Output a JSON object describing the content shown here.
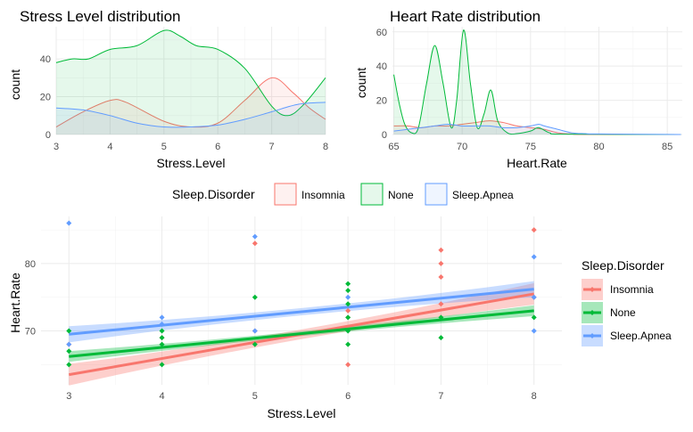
{
  "chart_data": [
    {
      "type": "area",
      "title": "Stress Level distribution",
      "xlabel": "Stress.Level",
      "ylabel": "count",
      "xlim": [
        3,
        8
      ],
      "ylim": [
        0,
        57
      ],
      "x_ticks": [
        3,
        4,
        5,
        6,
        7,
        8
      ],
      "y_ticks": [
        0,
        20,
        40
      ],
      "grid": true,
      "series": [
        {
          "name": "Insomnia",
          "color": "#F8766D",
          "points": [
            [
              3,
              4
            ],
            [
              3.5,
              12
            ],
            [
              4,
              18
            ],
            [
              4.3,
              17
            ],
            [
              5,
              7
            ],
            [
              5.5,
              4
            ],
            [
              6,
              6
            ],
            [
              6.5,
              18
            ],
            [
              7,
              30
            ],
            [
              7.4,
              22
            ],
            [
              7.7,
              14
            ],
            [
              8,
              8
            ]
          ]
        },
        {
          "name": "None",
          "color": "#00BA38",
          "points": [
            [
              3,
              38
            ],
            [
              3.3,
              40
            ],
            [
              3.6,
              40
            ],
            [
              4,
              45
            ],
            [
              4.5,
              47
            ],
            [
              5,
              55
            ],
            [
              5.3,
              52
            ],
            [
              5.6,
              47
            ],
            [
              6,
              45
            ],
            [
              6.5,
              35
            ],
            [
              7,
              15
            ],
            [
              7.3,
              10
            ],
            [
              7.6,
              16
            ],
            [
              8,
              30
            ]
          ]
        },
        {
          "name": "Sleep.Apnea",
          "color": "#619CFF",
          "points": [
            [
              3,
              14
            ],
            [
              3.5,
              13
            ],
            [
              4,
              10
            ],
            [
              4.5,
              6
            ],
            [
              5,
              4
            ],
            [
              5.5,
              4
            ],
            [
              6,
              5
            ],
            [
              6.5,
              8
            ],
            [
              7,
              12
            ],
            [
              7.5,
              16
            ],
            [
              8,
              17
            ]
          ]
        }
      ]
    },
    {
      "type": "area",
      "title": "Heart Rate distribution",
      "xlabel": "Heart.Rate",
      "ylabel": "count",
      "xlim": [
        64.9,
        86.1
      ],
      "ylim": [
        0,
        63
      ],
      "x_ticks": [
        65,
        70,
        75,
        80,
        85
      ],
      "y_ticks": [
        0,
        20,
        40,
        60
      ],
      "grid": true,
      "series": [
        {
          "name": "Insomnia",
          "color": "#F8766D",
          "points": [
            [
              65,
              5
            ],
            [
              66,
              5
            ],
            [
              67,
              4
            ],
            [
              68,
              5
            ],
            [
              69,
              5
            ],
            [
              70,
              6
            ],
            [
              71,
              7
            ],
            [
              72,
              8
            ],
            [
              73,
              7
            ],
            [
              74,
              5
            ],
            [
              75,
              4
            ],
            [
              76,
              3
            ],
            [
              77,
              1
            ],
            [
              78,
              0.3
            ],
            [
              79,
              0
            ],
            [
              86,
              0
            ]
          ]
        },
        {
          "name": "None",
          "color": "#00BA38",
          "points": [
            [
              65,
              35
            ],
            [
              65.4,
              18
            ],
            [
              65.8,
              6
            ],
            [
              66.3,
              1
            ],
            [
              66.8,
              4
            ],
            [
              67.4,
              30
            ],
            [
              68,
              52
            ],
            [
              68.6,
              30
            ],
            [
              69.2,
              4
            ],
            [
              69.6,
              20
            ],
            [
              70.1,
              61
            ],
            [
              70.6,
              30
            ],
            [
              71.1,
              4
            ],
            [
              71.6,
              12
            ],
            [
              72.1,
              26
            ],
            [
              72.6,
              8
            ],
            [
              73.3,
              1
            ],
            [
              74,
              0.5
            ],
            [
              75,
              2
            ],
            [
              75.6,
              4
            ],
            [
              76.4,
              1
            ],
            [
              77.5,
              0.2
            ],
            [
              86,
              0
            ]
          ]
        },
        {
          "name": "Sleep.Apnea",
          "color": "#619CFF",
          "points": [
            [
              65,
              2
            ],
            [
              66,
              3
            ],
            [
              67,
              4
            ],
            [
              68,
              5
            ],
            [
              69,
              6
            ],
            [
              70,
              5
            ],
            [
              71,
              5
            ],
            [
              72,
              5
            ],
            [
              73,
              4
            ],
            [
              74,
              4
            ],
            [
              75,
              5
            ],
            [
              75.6,
              6
            ],
            [
              76,
              5
            ],
            [
              77,
              3
            ],
            [
              78,
              1
            ],
            [
              79,
              0.5
            ],
            [
              80,
              0.3
            ],
            [
              86,
              0
            ]
          ]
        }
      ]
    },
    {
      "type": "scatter",
      "title": "",
      "xlabel": "Stress.Level",
      "ylabel": "Heart.Rate",
      "xlim": [
        2.7,
        8.3
      ],
      "ylim": [
        62,
        87
      ],
      "x_ticks": [
        3,
        4,
        5,
        6,
        7,
        8
      ],
      "y_ticks": [
        70,
        80
      ],
      "grid": true,
      "legend_position": "right",
      "series": [
        {
          "name": "Insomnia",
          "color": "#F8766D",
          "points": [
            [
              3,
              68
            ],
            [
              4,
              69
            ],
            [
              5,
              83
            ],
            [
              5,
              70
            ],
            [
              6,
              72
            ],
            [
              6,
              65
            ],
            [
              6,
              73
            ],
            [
              7,
              82
            ],
            [
              7,
              80
            ],
            [
              7,
              78
            ],
            [
              7,
              74
            ],
            [
              8,
              85
            ],
            [
              8,
              75
            ]
          ],
          "trend": {
            "x": [
              3,
              8
            ],
            "y": [
              63.5,
              75.5
            ],
            "band": 1.6
          }
        },
        {
          "name": "None",
          "color": "#00BA38",
          "points": [
            [
              3,
              70
            ],
            [
              3,
              67
            ],
            [
              3,
              65
            ],
            [
              4,
              70
            ],
            [
              4,
              69
            ],
            [
              4,
              68
            ],
            [
              4,
              65
            ],
            [
              5,
              75
            ],
            [
              5,
              68
            ],
            [
              6,
              77
            ],
            [
              6,
              76
            ],
            [
              6,
              74
            ],
            [
              6,
              72
            ],
            [
              6,
              70
            ],
            [
              6,
              68
            ],
            [
              7,
              72
            ],
            [
              7,
              69
            ],
            [
              8,
              72
            ]
          ],
          "trend": {
            "x": [
              3,
              8
            ],
            "y": [
              66.2,
              73
            ],
            "band": 0.8
          }
        },
        {
          "name": "Sleep.Apnea",
          "color": "#619CFF",
          "points": [
            [
              3,
              86
            ],
            [
              3,
              68
            ],
            [
              4,
              72
            ],
            [
              4,
              71
            ],
            [
              5,
              84
            ],
            [
              5,
              70
            ],
            [
              6,
              75
            ],
            [
              8,
              81
            ],
            [
              8,
              75
            ],
            [
              8,
              70
            ]
          ],
          "trend": {
            "x": [
              3,
              8
            ],
            "y": [
              69.5,
              76.2
            ],
            "band": 1.2
          }
        }
      ]
    }
  ],
  "shared_legend": {
    "title": "Sleep.Disorder",
    "items": [
      "Insomnia",
      "None",
      "Sleep.Apnea"
    ]
  },
  "scatter_legend": {
    "title": "Sleep.Disorder",
    "items": [
      "Insomnia",
      "None",
      "Sleep.Apnea"
    ]
  }
}
